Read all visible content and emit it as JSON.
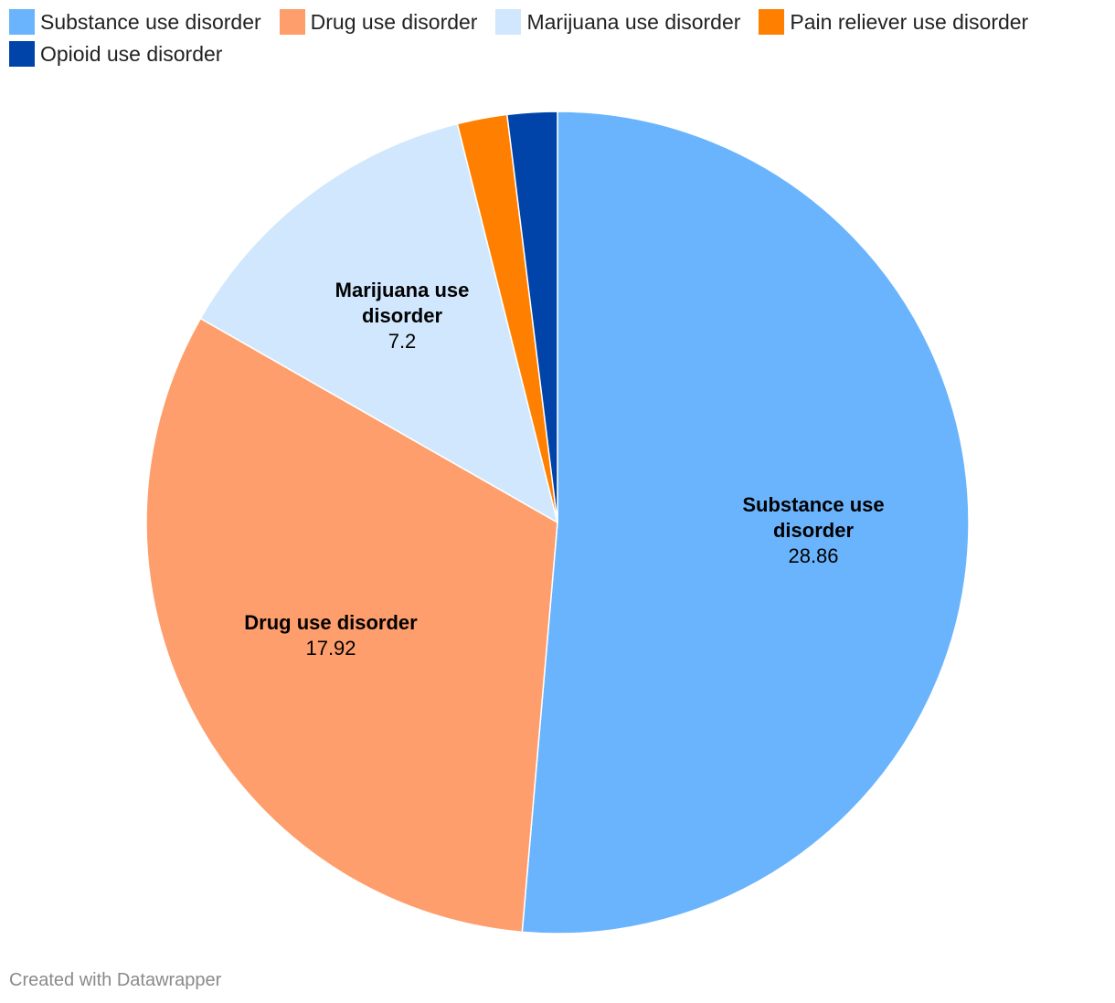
{
  "chart_data": {
    "type": "pie",
    "title": "",
    "legend": "top-left",
    "slices": [
      {
        "label": "Substance use disorder",
        "value": 28.86,
        "value_label": "28.86",
        "color": "#6ab4fd",
        "label_lines": [
          "Substance use",
          "disorder"
        ]
      },
      {
        "label": "Drug use disorder",
        "value": 17.92,
        "value_label": "17.92",
        "color": "#ff9e6d",
        "label_lines": [
          "Drug use disorder"
        ]
      },
      {
        "label": "Marijuana use disorder",
        "value": 7.2,
        "value_label": "7.2",
        "color": "#d0e7fd",
        "label_lines": [
          "Marijuana use",
          "disorder"
        ]
      },
      {
        "label": "Pain reliever use disorder",
        "value": 1.1,
        "color": "#ff8000"
      },
      {
        "label": "Opioid use disorder",
        "value": 1.1,
        "color": "#0044aa"
      }
    ]
  },
  "footer": {
    "credit": "Created with Datawrapper"
  }
}
